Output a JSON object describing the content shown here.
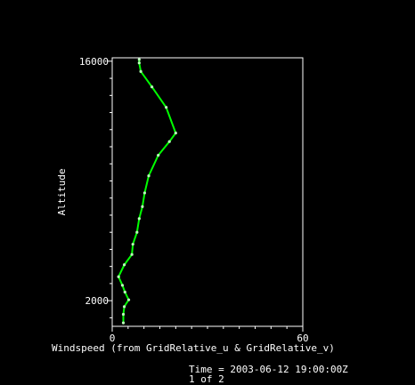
{
  "chart_data": {
    "type": "line",
    "xlabel": "Windspeed (from GridRelative_u & GridRelative_v)",
    "ylabel": "Altitude",
    "xlim": [
      0,
      60
    ],
    "ylim": [
      500,
      16200
    ],
    "x_ticks": [
      0,
      60
    ],
    "y_ticks": [
      2000,
      16000
    ],
    "x_tick_labels": [
      "0",
      "60"
    ],
    "y_tick_labels": [
      "2000",
      "16000"
    ],
    "series": [
      {
        "color": "#00ff00",
        "marker": "dot",
        "points": [
          {
            "x": 3.5,
            "y": 700
          },
          {
            "x": 3.5,
            "y": 1200
          },
          {
            "x": 3.8,
            "y": 1650
          },
          {
            "x": 5.2,
            "y": 2050
          },
          {
            "x": 4.0,
            "y": 2500
          },
          {
            "x": 3.2,
            "y": 2900
          },
          {
            "x": 2.0,
            "y": 3400
          },
          {
            "x": 3.8,
            "y": 4100
          },
          {
            "x": 6.2,
            "y": 4700
          },
          {
            "x": 6.5,
            "y": 5300
          },
          {
            "x": 7.8,
            "y": 6000
          },
          {
            "x": 8.5,
            "y": 6800
          },
          {
            "x": 9.5,
            "y": 7500
          },
          {
            "x": 10.2,
            "y": 8300
          },
          {
            "x": 11.5,
            "y": 9300
          },
          {
            "x": 14.5,
            "y": 10500
          },
          {
            "x": 18.0,
            "y": 11300
          },
          {
            "x": 20.0,
            "y": 11800
          },
          {
            "x": 17.0,
            "y": 13300
          },
          {
            "x": 12.5,
            "y": 14500
          },
          {
            "x": 9.0,
            "y": 15400
          },
          {
            "x": 8.5,
            "y": 15900
          },
          {
            "x": 8.5,
            "y": 16100
          }
        ]
      }
    ],
    "footer": {
      "time_line": "Time = 2003-06-12 19:00:00Z",
      "page_line": "1 of 2"
    }
  }
}
